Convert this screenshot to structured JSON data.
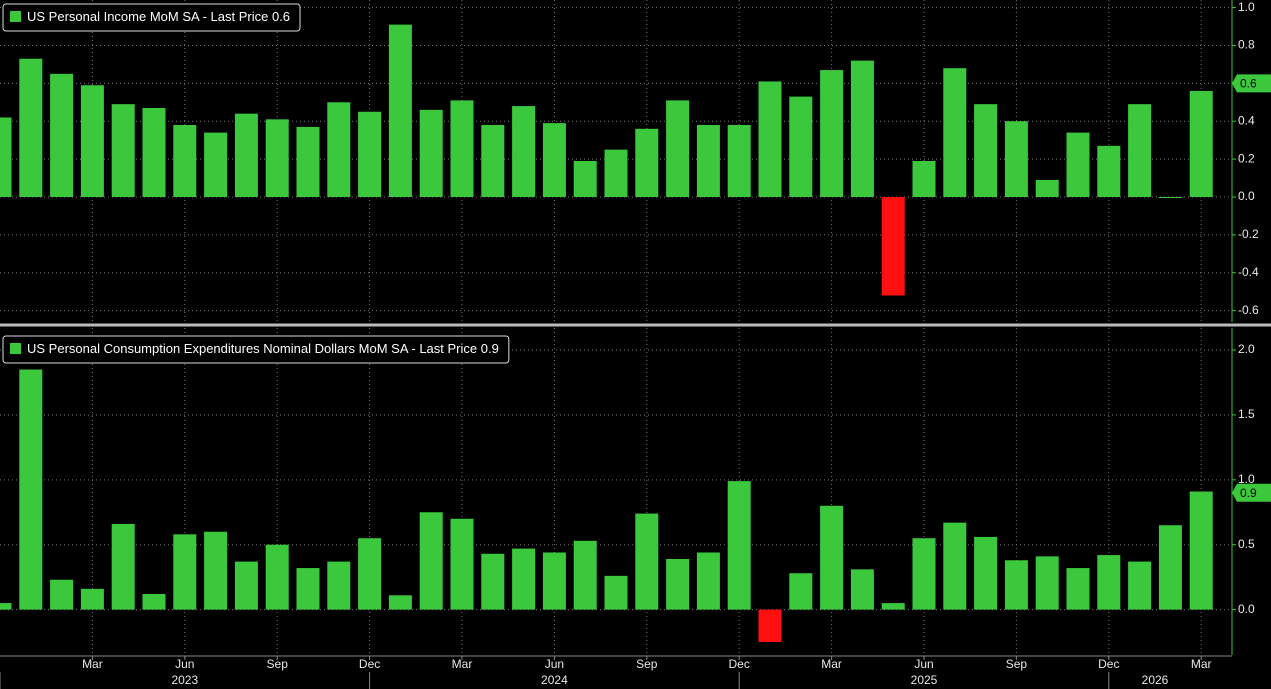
{
  "chart_data": [
    {
      "type": "bar",
      "title": "US Personal Income MoM SA - Last Price",
      "last_price": 0.6,
      "color": "#3cc83c",
      "negative_color": "#ff1010",
      "values": [
        0.42,
        0.73,
        0.65,
        0.59,
        0.49,
        0.47,
        0.38,
        0.34,
        0.44,
        0.41,
        0.37,
        0.5,
        0.45,
        0.91,
        0.46,
        0.51,
        0.38,
        0.48,
        0.39,
        0.19,
        0.25,
        0.36,
        0.51,
        0.38,
        0.38,
        0.61,
        0.53,
        0.67,
        0.72,
        -0.52,
        0.19,
        0.68,
        0.49,
        0.4,
        0.09,
        0.34,
        0.27,
        0.49,
        0.0,
        0.56
      ],
      "ylim": [
        -0.66,
        1.04
      ],
      "yticks": [
        {
          "value": 1,
          "label": "1.0"
        },
        0.8,
        0.6,
        0.4,
        0.2,
        {
          "value": 0,
          "label": "0.0"
        },
        -0.2,
        -0.4,
        -0.6
      ],
      "grid": true
    },
    {
      "type": "bar",
      "title": "US Personal Consumption Expenditures Nominal Dollars MoM SA - Last Price",
      "last_price": 0.9,
      "color": "#3cc83c",
      "negative_color": "#ff1010",
      "categories": [
        null,
        null,
        null,
        "Mar",
        null,
        null,
        "Jun",
        null,
        null,
        "Sep",
        null,
        null,
        "Dec",
        null,
        null,
        "Mar",
        null,
        null,
        "Jun",
        null,
        null,
        "Sep",
        null,
        null,
        "Dec",
        null,
        null,
        "Mar",
        null,
        null,
        "Jun",
        null,
        null,
        "Sep",
        null,
        null,
        "Dec",
        null,
        null,
        "Mar"
      ],
      "years": [
        "2023",
        "2024",
        "2025",
        "2026"
      ],
      "values": [
        0.05,
        1.85,
        0.23,
        0.16,
        0.66,
        0.12,
        0.58,
        0.6,
        0.37,
        0.5,
        0.32,
        0.37,
        0.55,
        0.11,
        0.75,
        0.7,
        0.43,
        0.47,
        0.44,
        0.53,
        0.26,
        0.74,
        0.39,
        0.44,
        0.99,
        -0.25,
        0.28,
        0.8,
        0.31,
        0.05,
        0.55,
        0.67,
        0.56,
        0.38,
        0.41,
        0.32,
        0.42,
        0.37,
        0.65,
        0.91
      ],
      "ylim": [
        -0.35,
        2.17
      ],
      "yticks": [
        {
          "value": 2,
          "label": "2.0"
        },
        1.5,
        {
          "value": 1,
          "label": "1.0"
        },
        0.5,
        {
          "value": 0,
          "label": "0.0"
        }
      ],
      "grid": true
    }
  ]
}
